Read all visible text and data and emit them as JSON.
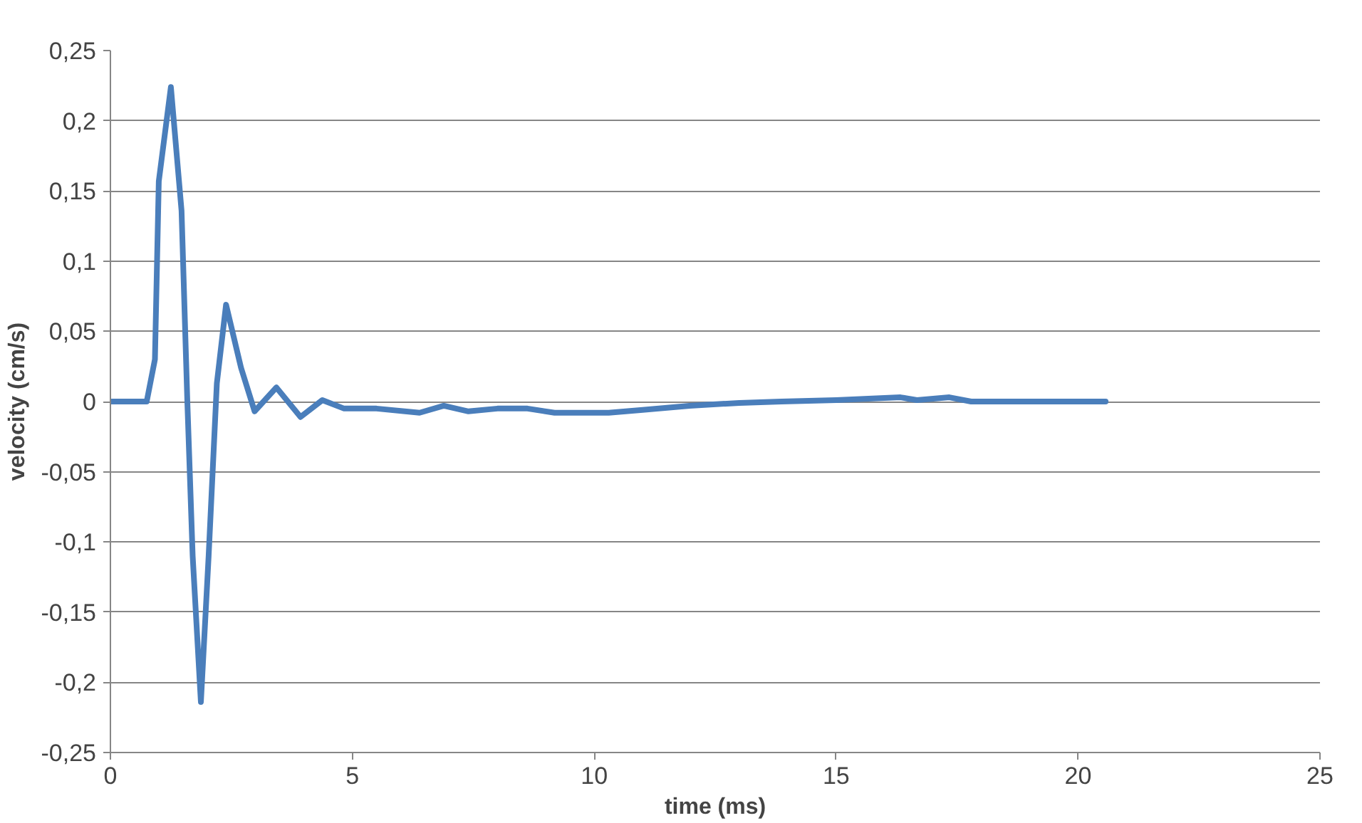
{
  "chart_data": {
    "type": "line",
    "xlabel": "time (ms)",
    "ylabel": "velocity (cm/s)",
    "x": [
      0,
      0.75,
      0.92,
      1.0,
      1.25,
      1.47,
      1.59,
      1.7,
      1.87,
      2.03,
      2.2,
      2.39,
      2.7,
      2.98,
      3.43,
      3.93,
      4.38,
      4.83,
      5.5,
      6.39,
      6.89,
      7.4,
      8.0,
      8.62,
      9.18,
      10.3,
      11.0,
      11.97,
      13.0,
      13.87,
      15.0,
      16.33,
      16.67,
      17.34,
      17.79,
      19.0,
      20.57
    ],
    "series": [
      {
        "color": "#4a7ebb",
        "values": [
          0,
          0,
          0.03,
          0.157,
          0.224,
          0.136,
          0,
          -0.11,
          -0.214,
          -0.11,
          0.013,
          0.069,
          0.024,
          -0.007,
          0.01,
          -0.011,
          0.001,
          -0.005,
          -0.005,
          -0.008,
          -0.003,
          -0.007,
          -0.005,
          -0.005,
          -0.008,
          -0.008,
          -0.006,
          -0.003,
          -0.001,
          0,
          0.001,
          0.003,
          0.001,
          0.003,
          0,
          0,
          0
        ]
      }
    ],
    "xlim": [
      0,
      25
    ],
    "xticks": [
      0,
      5,
      10,
      15,
      20,
      25
    ],
    "ylim": [
      -0.25,
      0.25
    ],
    "yticks": [
      {
        "value": -0.25,
        "label": "-0,25"
      },
      {
        "value": -0.2,
        "label": "-0,2"
      },
      {
        "value": -0.15,
        "label": "-0,15"
      },
      {
        "value": -0.1,
        "label": "-0,1"
      },
      {
        "value": -0.05,
        "label": "-0,05"
      },
      0,
      {
        "value": 0.05,
        "label": "0,05"
      },
      {
        "value": 0.1,
        "label": "0,1"
      },
      {
        "value": 0.15,
        "label": "0,15"
      },
      {
        "value": 0.2,
        "label": "0,2"
      },
      {
        "value": 0.25,
        "label": "0,25"
      }
    ],
    "grid": "y",
    "marker": "none",
    "line_style": "solid"
  }
}
